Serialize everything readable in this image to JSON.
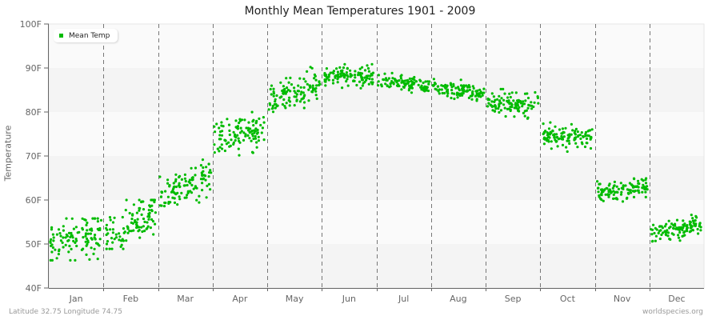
{
  "header": {
    "title": "Monthly Mean Temperatures 1901 - 2009"
  },
  "footer": {
    "location": "Latitude 32.75 Longitude 74.75",
    "source": "worldspecies.org"
  },
  "legend": {
    "label": "Mean Temp",
    "color": "#00bb00"
  },
  "colors": {
    "point": "#00bb00",
    "band_light": "#fafafa",
    "band_dark": "#f4f4f4",
    "divider": "#777777",
    "axis": "#666666"
  },
  "chart_data": {
    "type": "scatter",
    "title": "Monthly Mean Temperatures 1901 - 2009",
    "xlabel": "",
    "ylabel": "Temperature",
    "ylim": [
      40,
      100
    ],
    "yticks": [
      "40F",
      "50F",
      "60F",
      "70F",
      "80F",
      "90F",
      "100F"
    ],
    "categories": [
      "Jan",
      "Feb",
      "Mar",
      "Apr",
      "May",
      "Jun",
      "Jul",
      "Aug",
      "Sep",
      "Oct",
      "Nov",
      "Dec"
    ],
    "grid": "alternating horizontal bands, dashed vertical month dividers",
    "legend_position": "top-left inside",
    "years": [
      1901,
      2009
    ],
    "series": [
      {
        "name": "Mean Temp",
        "points_per_month": 109,
        "monthly": [
          {
            "month": "Jan",
            "mean": 51.0,
            "start": 50.0,
            "end": 52.2,
            "spread": 2.2,
            "min": 46.3,
            "max": 55.8
          },
          {
            "month": "Feb",
            "mean": 54.5,
            "start": 52.5,
            "end": 56.8,
            "spread": 2.2,
            "min": 48.9,
            "max": 60.0
          },
          {
            "month": "Mar",
            "mean": 64.2,
            "start": 60.5,
            "end": 65.5,
            "spread": 2.0,
            "min": 58.4,
            "max": 70.4
          },
          {
            "month": "Apr",
            "mean": 74.8,
            "start": 73.5,
            "end": 76.5,
            "spread": 2.0,
            "min": 69.8,
            "max": 80.4
          },
          {
            "month": "May",
            "mean": 84.2,
            "start": 83.0,
            "end": 85.5,
            "spread": 2.2,
            "min": 77.3,
            "max": 90.2
          },
          {
            "month": "Jun",
            "mean": 88.5,
            "start": 88.6,
            "end": 88.0,
            "spread": 1.1,
            "min": 85.4,
            "max": 91.5
          },
          {
            "month": "Jul",
            "mean": 86.6,
            "start": 87.3,
            "end": 85.7,
            "spread": 0.9,
            "min": 83.2,
            "max": 89.0
          },
          {
            "month": "Aug",
            "mean": 85.0,
            "start": 85.5,
            "end": 84.3,
            "spread": 0.9,
            "min": 82.3,
            "max": 87.5
          },
          {
            "month": "Sep",
            "mean": 81.8,
            "start": 82.0,
            "end": 81.5,
            "spread": 1.4,
            "min": 77.2,
            "max": 85.2
          },
          {
            "month": "Oct",
            "mean": 74.0,
            "start": 74.0,
            "end": 74.3,
            "spread": 1.3,
            "min": 69.2,
            "max": 79.0
          },
          {
            "month": "Nov",
            "mean": 62.2,
            "start": 62.0,
            "end": 62.8,
            "spread": 1.1,
            "min": 58.0,
            "max": 65.8
          },
          {
            "month": "Dec",
            "mean": 53.6,
            "start": 52.5,
            "end": 54.6,
            "spread": 1.2,
            "min": 50.0,
            "max": 57.0
          }
        ]
      }
    ]
  }
}
